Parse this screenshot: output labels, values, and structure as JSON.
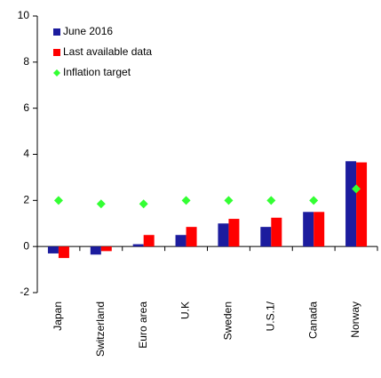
{
  "chart_data": {
    "type": "bar",
    "categories": [
      "Japan",
      "Switzerland",
      "Euro area",
      "U.K",
      "Sweden",
      "U.S.1/",
      "Canada",
      "Norway"
    ],
    "series": [
      {
        "name": "June 2016",
        "color": "#1c1c9e",
        "marker": "bar",
        "values": [
          -0.3,
          -0.35,
          0.1,
          0.5,
          1.0,
          0.85,
          1.5,
          3.7
        ]
      },
      {
        "name": "Last available data",
        "color": "#ff0000",
        "marker": "bar",
        "values": [
          -0.5,
          -0.2,
          0.5,
          0.85,
          1.2,
          1.25,
          1.5,
          3.65
        ]
      },
      {
        "name": "Inflation target",
        "color": "#33ff33",
        "marker": "diamond",
        "values": [
          2,
          1.85,
          1.85,
          2,
          2,
          2,
          2,
          2.5
        ]
      }
    ],
    "ylim": [
      -2,
      10
    ],
    "yticks": [
      -2,
      0,
      2,
      4,
      6,
      8,
      10
    ],
    "grid": false
  }
}
